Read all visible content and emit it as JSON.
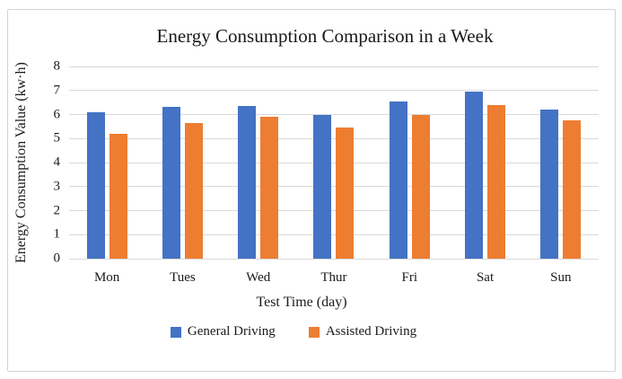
{
  "chart_data": {
    "type": "bar",
    "title": "Energy Consumption Comparison in a Week",
    "xlabel": "Test Time (day)",
    "ylabel": "Energy Consumption Value (kw·h)",
    "categories": [
      "Mon",
      "Tues",
      "Wed",
      "Thur",
      "Fri",
      "Sat",
      "Sun"
    ],
    "series": [
      {
        "name": "General Driving",
        "color": "#4472C4",
        "values": [
          6.1,
          6.3,
          6.35,
          6.0,
          6.55,
          6.95,
          6.2
        ]
      },
      {
        "name": "Assisted Driving",
        "color": "#ED7D31",
        "values": [
          5.2,
          5.65,
          5.9,
          5.45,
          6.0,
          6.4,
          5.75
        ]
      }
    ],
    "ylim": [
      0,
      8
    ],
    "yticks": [
      0,
      1,
      2,
      3,
      4,
      5,
      6,
      7,
      8
    ],
    "grid": "horizontal",
    "grid_color": "#D9D9D9",
    "legend_position": "bottom",
    "frame_border_color": "#D3D3D3",
    "text_color": "#1A1A1A"
  }
}
